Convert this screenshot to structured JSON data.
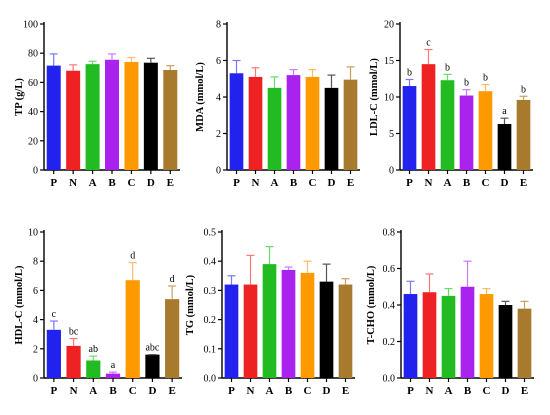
{
  "figure": {
    "categories": [
      "P",
      "N",
      "A",
      "B",
      "C",
      "D",
      "E"
    ],
    "colors": [
      "#2222ee",
      "#ee2222",
      "#22bb22",
      "#aa22ee",
      "#ff9900",
      "#000000",
      "#a87a2e"
    ],
    "error_bar_colors": [
      "#7777ff",
      "#ff7777",
      "#66dd66",
      "#cc77ff",
      "#ffbb66",
      "#555555",
      "#c8a060"
    ]
  },
  "chart_data": [
    {
      "type": "bar",
      "id": "tp",
      "ylabel": "TP (g/L)",
      "ylim": [
        0,
        100
      ],
      "yticks": [
        "0",
        "20",
        "40",
        "60",
        "80",
        "100"
      ],
      "categories": [
        "P",
        "N",
        "A",
        "B",
        "C",
        "D",
        "E"
      ],
      "values": [
        71.5,
        68,
        72.5,
        75.5,
        74,
        73.5,
        68.5
      ],
      "errors": [
        8,
        4,
        2,
        4,
        3,
        3,
        3
      ],
      "sig_labels": []
    },
    {
      "type": "bar",
      "id": "mda",
      "ylabel": "MDA (mmol/L)",
      "ylim": [
        0,
        8
      ],
      "yticks": [
        "0",
        "2",
        "4",
        "6",
        "8"
      ],
      "categories": [
        "P",
        "N",
        "A",
        "B",
        "C",
        "D",
        "E"
      ],
      "values": [
        5.3,
        5.1,
        4.5,
        5.2,
        5.1,
        4.5,
        4.95
      ],
      "errors": [
        0.7,
        0.5,
        0.6,
        0.3,
        0.4,
        0.7,
        0.7
      ],
      "sig_labels": []
    },
    {
      "type": "bar",
      "id": "ldl",
      "ylabel": "LDL-C (mmol/L)",
      "ylim": [
        0,
        20
      ],
      "yticks": [
        "0",
        "5",
        "10",
        "15",
        "20"
      ],
      "categories": [
        "P",
        "N",
        "A",
        "B",
        "C",
        "D",
        "E"
      ],
      "values": [
        11.5,
        14.5,
        12.3,
        10.2,
        10.8,
        6.3,
        9.6
      ],
      "errors": [
        0.9,
        2.0,
        0.8,
        0.8,
        0.9,
        0.8,
        0.5
      ],
      "sig_labels": [
        "b",
        "c",
        "b",
        "b",
        "b",
        "a",
        "b"
      ]
    },
    {
      "type": "bar",
      "id": "hdl",
      "ylabel": "HDL-C (mmol/L)",
      "ylim": [
        0,
        10
      ],
      "yticks": [
        "0",
        "2",
        "4",
        "6",
        "8",
        "10"
      ],
      "categories": [
        "P",
        "N",
        "A",
        "B",
        "C",
        "D",
        "E"
      ],
      "values": [
        3.3,
        2.2,
        1.2,
        0.3,
        6.7,
        1.6,
        5.4
      ],
      "errors": [
        0.6,
        0.5,
        0.3,
        0.1,
        1.2,
        0.0,
        0.9
      ],
      "sig_labels": [
        "c",
        "bc",
        "ab",
        "a",
        "d",
        "abc",
        "d"
      ]
    },
    {
      "type": "bar",
      "id": "tg",
      "ylabel": "TG (mmol/L)",
      "ylim": [
        0,
        0.5
      ],
      "yticks": [
        "0.0",
        "0.1",
        "0.2",
        "0.3",
        "0.4",
        "0.5"
      ],
      "categories": [
        "P",
        "N",
        "A",
        "B",
        "C",
        "D",
        "E"
      ],
      "values": [
        0.32,
        0.32,
        0.39,
        0.37,
        0.36,
        0.33,
        0.32
      ],
      "errors": [
        0.03,
        0.1,
        0.06,
        0.01,
        0.04,
        0.06,
        0.02
      ],
      "sig_labels": []
    },
    {
      "type": "bar",
      "id": "tcho",
      "ylabel": "T-CHO (mmol/L)",
      "ylim": [
        0,
        0.8
      ],
      "yticks": [
        "0.0",
        "0.2",
        "0.4",
        "0.6",
        "0.8"
      ],
      "categories": [
        "P",
        "N",
        "A",
        "B",
        "C",
        "D",
        "E"
      ],
      "values": [
        0.46,
        0.47,
        0.45,
        0.5,
        0.46,
        0.4,
        0.38
      ],
      "errors": [
        0.07,
        0.1,
        0.04,
        0.14,
        0.03,
        0.02,
        0.04
      ],
      "sig_labels": []
    }
  ]
}
